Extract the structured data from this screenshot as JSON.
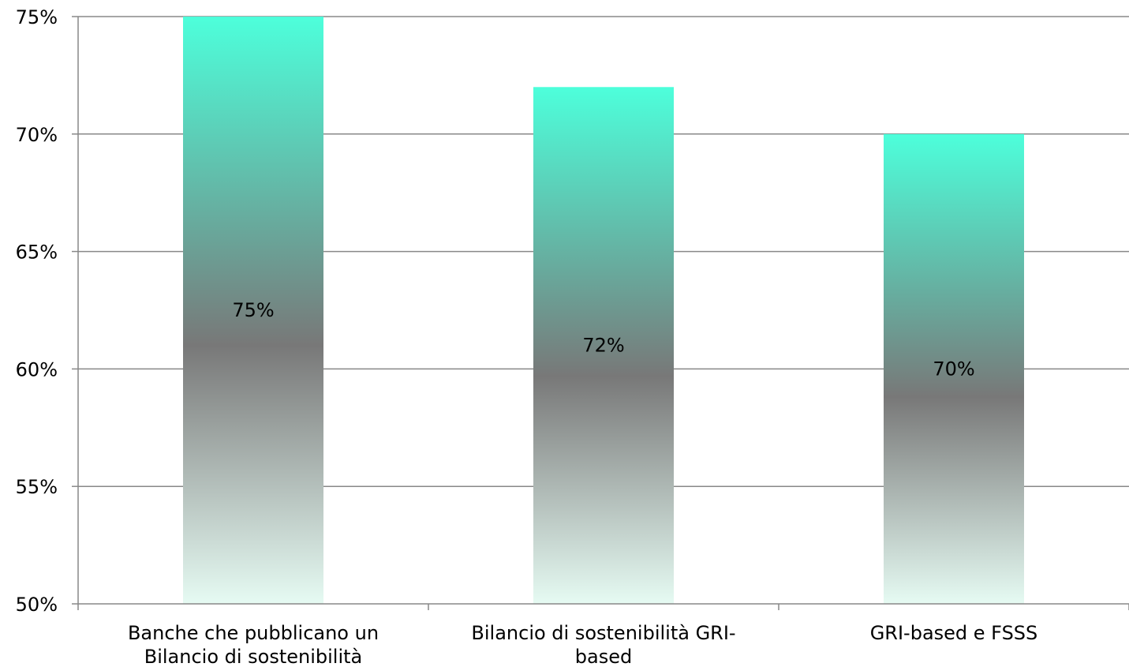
{
  "chart_data": {
    "type": "bar",
    "categories": [
      [
        "Banche che pubblicano un",
        "Bilancio di sostenibilità"
      ],
      [
        "Bilancio di sostenibilità GRI-",
        "based"
      ],
      [
        "GRI-based e FSSS"
      ]
    ],
    "values": [
      75,
      72,
      70
    ],
    "data_labels": [
      "75%",
      "72%",
      "70%"
    ],
    "title": "",
    "xlabel": "",
    "ylabel": "",
    "ylim": [
      50,
      75
    ],
    "yticks": [
      50,
      55,
      60,
      65,
      70,
      75
    ],
    "ytick_labels": [
      "50%",
      "55%",
      "60%",
      "65%",
      "70%",
      "75%"
    ],
    "grid": true,
    "legend": "none",
    "colors": {
      "bar_top": "#4dffdb",
      "bar_mid": "#787878",
      "bar_bottom": "#e6fbf3",
      "grid": "#888888",
      "axis": "#888888"
    }
  }
}
